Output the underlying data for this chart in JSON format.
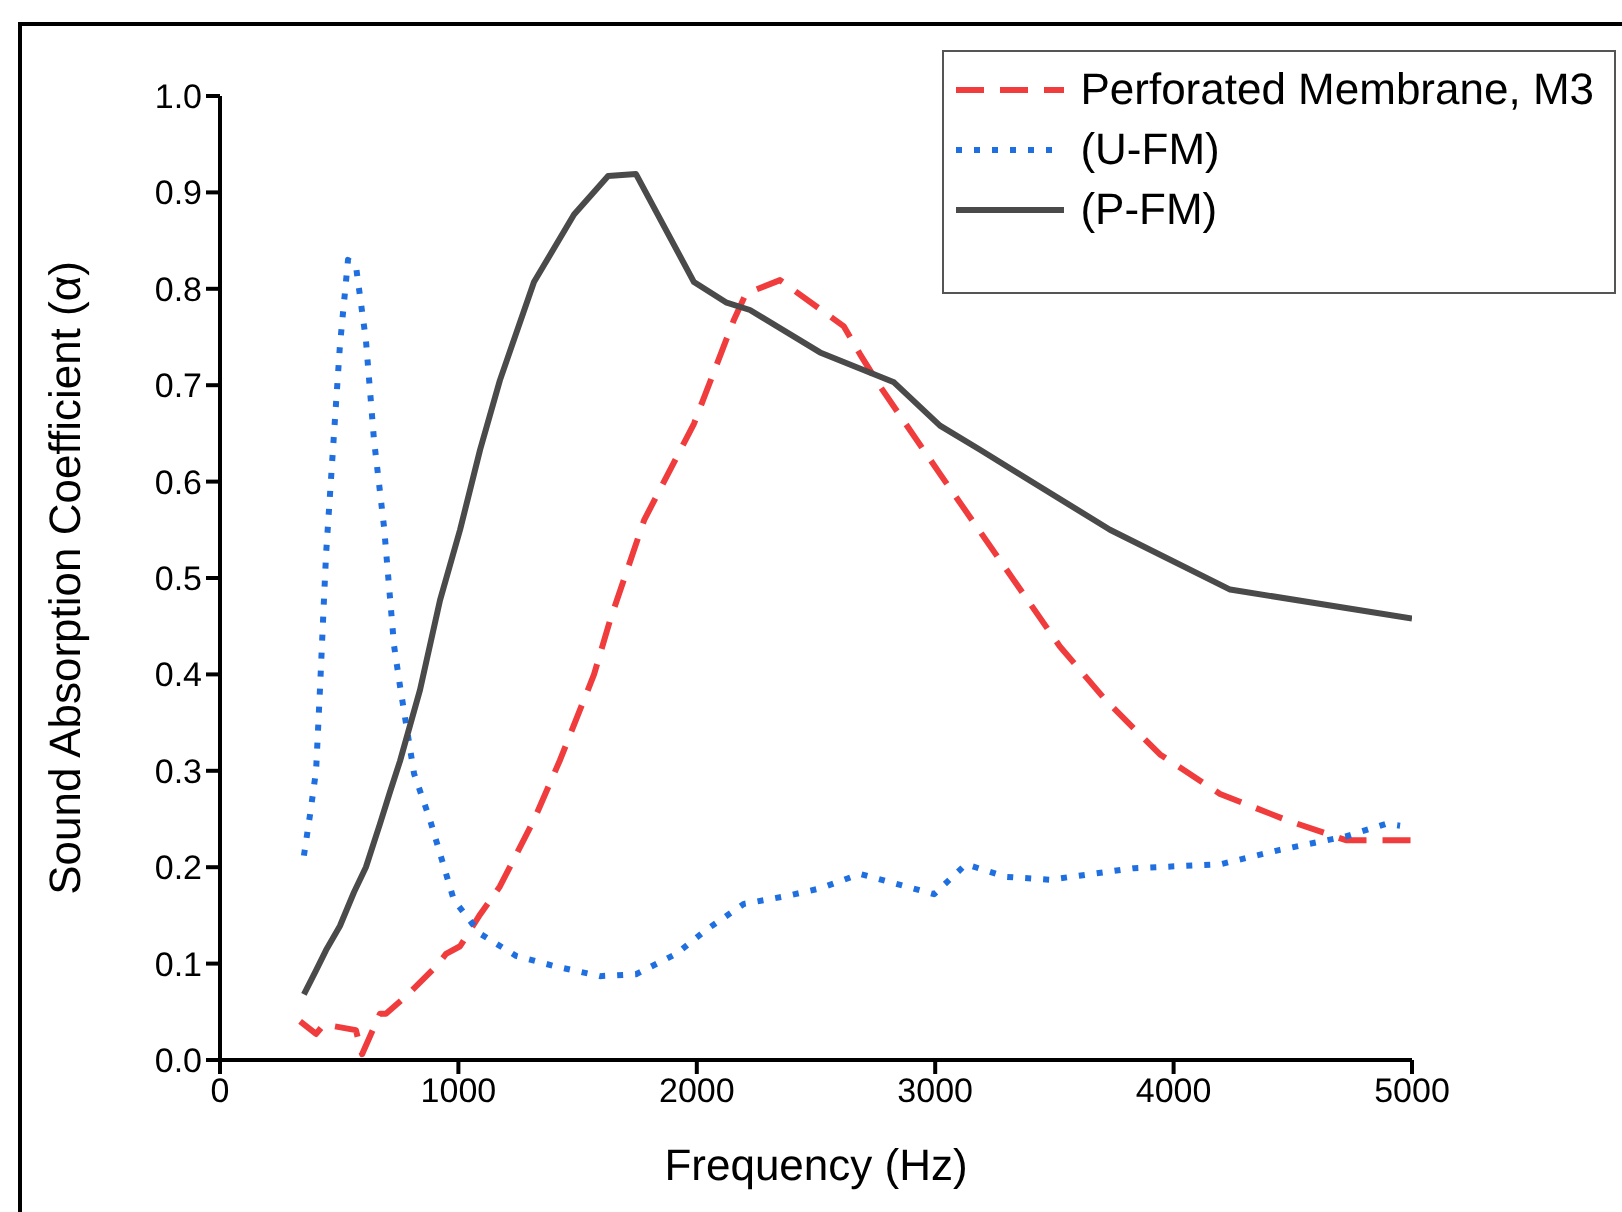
{
  "chart_data": {
    "type": "line",
    "xlabel": "Frequency (Hz)",
    "ylabel": "Sound Absorption Coefficient (α)",
    "xlim": [
      0,
      5000
    ],
    "xticks": [
      0,
      1000,
      2000,
      3000,
      4000,
      5000
    ],
    "ylim": [
      0,
      1
    ],
    "yticks": [
      {
        "value": 0,
        "label": "0.0"
      },
      0.1,
      0.2,
      0.3,
      0.4,
      0.5,
      0.6,
      0.7,
      0.8,
      0.9,
      {
        "value": 1,
        "label": "1.0"
      }
    ],
    "legend": "top right",
    "grid": false,
    "marker": "none",
    "series": [
      {
        "name": "Perforated Membrane, M3",
        "color": "#f03c3c",
        "line_style": "dashed",
        "x": [
          336,
          403,
          436,
          570,
          596,
          671,
          696,
          780,
          906,
          948,
          1007,
          1091,
          1174,
          1317,
          1426,
          1569,
          1636,
          1779,
          1988,
          2156,
          2206,
          2349,
          2617,
          2685,
          2768,
          3020,
          3523,
          3716,
          3943,
          4195,
          4472,
          4723,
          5000
        ],
        "values": [
          0.04,
          0.027,
          0.037,
          0.031,
          0.006,
          0.048,
          0.048,
          0.066,
          0.097,
          0.11,
          0.118,
          0.151,
          0.18,
          0.249,
          0.311,
          0.4,
          0.456,
          0.56,
          0.66,
          0.768,
          0.795,
          0.809,
          0.761,
          0.732,
          0.699,
          0.608,
          0.429,
          0.373,
          0.317,
          0.276,
          0.249,
          0.228,
          0.228
        ]
      },
      {
        "name": "(U-FM)",
        "color": "#1f6fe0",
        "line_style": "dotted",
        "x": [
          352,
          378,
          403,
          420,
          436,
          445,
          478,
          503,
          537,
          570,
          612,
          646,
          688,
          730,
          755,
          814,
          881,
          981,
          1091,
          1242,
          1409,
          1594,
          1745,
          1913,
          2039,
          2198,
          2374,
          2517,
          2685,
          2878,
          2995,
          3129,
          3297,
          3481,
          3834,
          4195,
          4446,
          4723,
          4891,
          4950
        ],
        "values": [
          0.212,
          0.255,
          0.3,
          0.388,
          0.477,
          0.525,
          0.649,
          0.741,
          0.83,
          0.824,
          0.747,
          0.643,
          0.553,
          0.43,
          0.388,
          0.297,
          0.249,
          0.166,
          0.131,
          0.108,
          0.097,
          0.087,
          0.089,
          0.11,
          0.135,
          0.162,
          0.17,
          0.178,
          0.193,
          0.18,
          0.172,
          0.203,
          0.19,
          0.187,
          0.199,
          0.203,
          0.218,
          0.232,
          0.245,
          0.243
        ]
      },
      {
        "name": "(P-FM)",
        "color": "#4a4a4a",
        "line_style": "solid",
        "x": [
          352,
          403,
          445,
          503,
          562,
          612,
          671,
          713,
          755,
          839,
          923,
          1007,
          1091,
          1174,
          1317,
          1485,
          1628,
          1745,
          1988,
          2122,
          2223,
          2517,
          2827,
          3020,
          3188,
          3733,
          4237,
          5000
        ],
        "values": [
          0.068,
          0.093,
          0.114,
          0.139,
          0.174,
          0.2,
          0.245,
          0.278,
          0.31,
          0.384,
          0.477,
          0.55,
          0.633,
          0.705,
          0.807,
          0.877,
          0.917,
          0.919,
          0.807,
          0.786,
          0.778,
          0.734,
          0.703,
          0.658,
          0.633,
          0.55,
          0.488,
          0.458
        ]
      }
    ]
  }
}
